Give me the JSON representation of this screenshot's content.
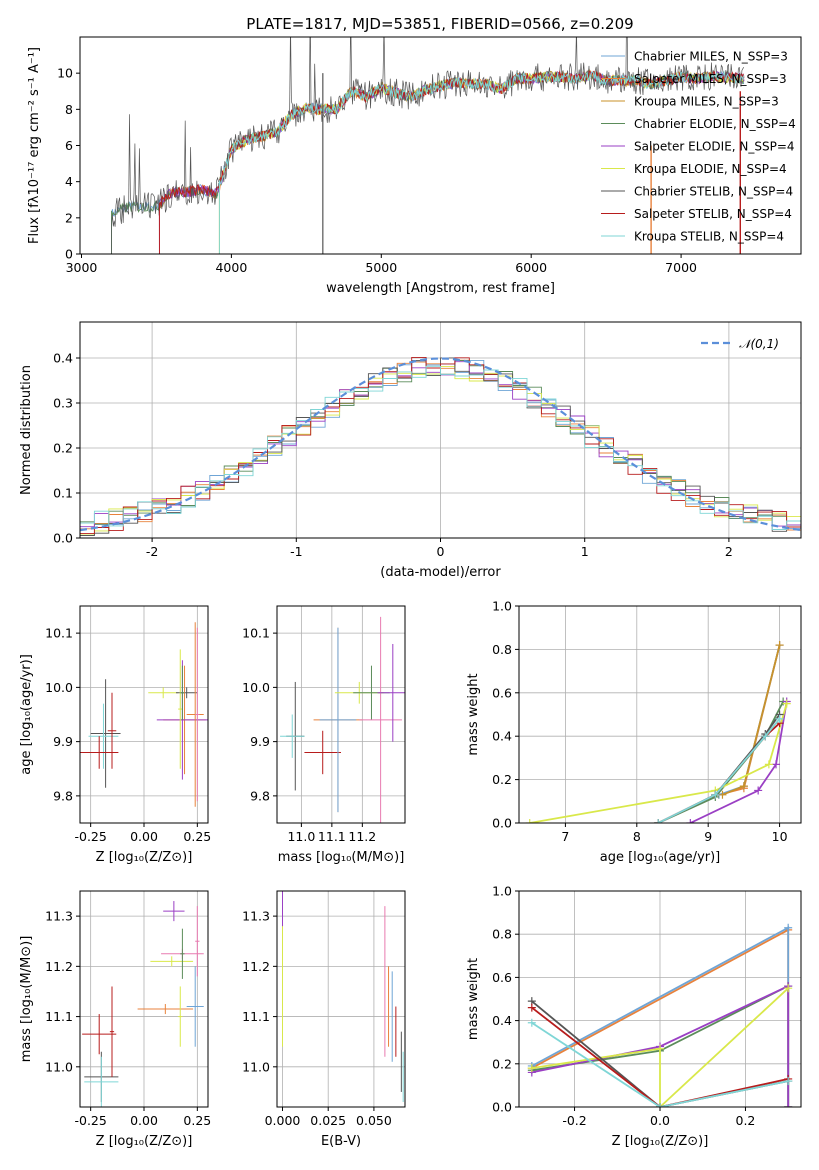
{
  "figure": {
    "title": "PLATE=1817, MJD=53851, FIBERID=0566, z=0.209"
  },
  "chart_data": [
    {
      "id": "spectrum",
      "type": "line",
      "xlabel": "wavelength [Angstrom, rest frame]",
      "ylabel": "Flux [fλ10⁻¹⁷ erg cm⁻² s⁻¹ A⁻¹]",
      "xlim": [
        2990,
        7800
      ],
      "ylim": [
        0,
        12
      ],
      "xticks": [
        3000,
        4000,
        5000,
        6000,
        7000
      ],
      "yticks": [
        0,
        2,
        4,
        6,
        8,
        10
      ],
      "grid": false,
      "legend_position": "top-right",
      "series": [
        {
          "name": "Chabrier MILES, N_SSP=3",
          "color": "#6fa5d6"
        },
        {
          "name": "Salpeter MILES, N_SSP=3",
          "color": "#e8823c"
        },
        {
          "name": "Kroupa MILES, N_SSP=3",
          "color": "#c8922a"
        },
        {
          "name": "Chabrier ELODIE, N_SSP=4",
          "color": "#5b8c5a"
        },
        {
          "name": "Salpeter ELODIE, N_SSP=4",
          "color": "#9a3fc4"
        },
        {
          "name": "Kroupa ELODIE, N_SSP=4",
          "color": "#d9e84a"
        },
        {
          "name": "Chabrier STELIB, N_SSP=4",
          "color": "#555555"
        },
        {
          "name": "Salpeter STELIB, N_SSP=4",
          "color": "#b71c1c"
        },
        {
          "name": "Kroupa STELIB, N_SSP=4",
          "color": "#7fd6d6"
        }
      ],
      "data_envelope": {
        "x": [
          3200,
          3300,
          3400,
          3500,
          3600,
          3700,
          3800,
          3900,
          4000,
          4100,
          4200,
          4300,
          4400,
          4500,
          4600,
          4700,
          4800,
          4900,
          5000,
          5100,
          5200,
          5300,
          5400,
          5500,
          5600,
          5700,
          5800,
          5900,
          6000,
          6100,
          6200,
          6300,
          6400,
          6500,
          6600,
          6700,
          6800,
          6900,
          7000,
          7100,
          7200,
          7300,
          7400
        ],
        "y": [
          2.2,
          2.6,
          2.6,
          2.6,
          3.4,
          3.4,
          3.6,
          3.3,
          5.8,
          6.3,
          6.5,
          6.7,
          7.7,
          8.1,
          8.0,
          8.0,
          9.0,
          8.7,
          9.2,
          8.9,
          8.7,
          9.1,
          9.3,
          9.5,
          9.4,
          9.4,
          9.1,
          9.7,
          9.7,
          9.8,
          9.8,
          9.7,
          9.9,
          9.6,
          9.6,
          9.6,
          9.4,
          9.6,
          9.8,
          9.7,
          9.8,
          9.8,
          9.7
        ]
      }
    },
    {
      "id": "residuals",
      "type": "line",
      "xlabel": "(data-model)/error",
      "ylabel": "Normed distribution",
      "xlim": [
        -2.5,
        2.5
      ],
      "ylim": [
        0,
        0.48
      ],
      "xticks": [
        -2,
        -1,
        0,
        1,
        2
      ],
      "yticks": [
        0.0,
        0.1,
        0.2,
        0.3,
        0.4
      ],
      "grid": true,
      "legend_position": "top-right",
      "gaussian_label": "𝒩(0,1)",
      "gaussian_color": "#5b8fd9"
    },
    {
      "id": "age-vs-Z",
      "type": "scatter",
      "xlabel": "Z [log₁₀(Z/Z⊙)]",
      "ylabel": "age  [log₁₀(age/yr)]",
      "xlim": [
        -0.3,
        0.3
      ],
      "ylim": [
        9.75,
        10.15
      ],
      "xticks": [
        -0.25,
        0.0,
        0.25
      ],
      "yticks": [
        9.8,
        9.9,
        10.0,
        10.1
      ],
      "grid": true,
      "points": [
        {
          "x": -0.18,
          "y": 9.915,
          "xerr": 0.07,
          "yerr": 0.1,
          "color": "#555555"
        },
        {
          "x": -0.19,
          "y": 9.91,
          "xerr": 0.07,
          "yerr": 0.06,
          "color": "#7fd6d6"
        },
        {
          "x": -0.21,
          "y": 9.88,
          "xerr": 0.09,
          "yerr": 0.03,
          "color": "#b71c1c"
        },
        {
          "x": -0.15,
          "y": 9.92,
          "xerr": 0.02,
          "yerr": 0.07,
          "color": "#b71c1c"
        },
        {
          "x": 0.09,
          "y": 9.99,
          "xerr": 0.07,
          "yerr": 0.01,
          "color": "#d9e84a"
        },
        {
          "x": 0.2,
          "y": 9.99,
          "xerr": 0.05,
          "yerr": 0.01,
          "color": "#555555"
        },
        {
          "x": 0.19,
          "y": 9.94,
          "xerr": 0.1,
          "yerr": 0.1,
          "color": "#e8823c"
        },
        {
          "x": 0.18,
          "y": 9.94,
          "xerr": 0.12,
          "yerr": 0.11,
          "color": "#9a3fc4"
        },
        {
          "x": 0.24,
          "y": 9.95,
          "xerr": 0.04,
          "yerr": 0.17,
          "color": "#e8823c"
        },
        {
          "x": 0.25,
          "y": 9.95,
          "xerr": 0.01,
          "yerr": 0.16,
          "color": "#e87ab0"
        },
        {
          "x": 0.17,
          "y": 9.96,
          "xerr": 0.01,
          "yerr": 0.11,
          "color": "#d9e84a"
        },
        {
          "x": 0.18,
          "y": 9.99,
          "xerr": 0.01,
          "yerr": 0.05,
          "color": "#5b8c5a"
        }
      ]
    },
    {
      "id": "age-vs-mass",
      "type": "scatter",
      "xlabel": "mass [log₁₀(M/M⊙)]",
      "ylabel": "",
      "xlim": [
        10.92,
        11.34
      ],
      "ylim": [
        9.75,
        10.15
      ],
      "xticks": [
        11.0,
        11.1,
        11.2
      ],
      "yticks": [
        9.8,
        9.9,
        10.0,
        10.1
      ],
      "grid": true,
      "points": [
        {
          "x": 10.98,
          "y": 9.91,
          "xerr": 0.03,
          "yerr": 0.1,
          "color": "#555555"
        },
        {
          "x": 10.97,
          "y": 9.91,
          "xerr": 0.04,
          "yerr": 0.04,
          "color": "#7fd6d6"
        },
        {
          "x": 11.07,
          "y": 9.88,
          "xerr": 0.06,
          "yerr": 0.04,
          "color": "#b71c1c"
        },
        {
          "x": 11.12,
          "y": 9.94,
          "xerr": 0.08,
          "yerr": 0.17,
          "color": "#e8823c"
        },
        {
          "x": 11.12,
          "y": 9.94,
          "xerr": 0.06,
          "yerr": 0.17,
          "color": "#6fa5d6"
        },
        {
          "x": 11.19,
          "y": 9.99,
          "xerr": 0.08,
          "yerr": 0.02,
          "color": "#d9e84a"
        },
        {
          "x": 11.23,
          "y": 9.99,
          "xerr": 0.06,
          "yerr": 0.05,
          "color": "#5b8c5a"
        },
        {
          "x": 11.26,
          "y": 9.94,
          "xerr": 0.07,
          "yerr": 0.19,
          "color": "#e87ab0"
        },
        {
          "x": 11.3,
          "y": 9.99,
          "xerr": 0.05,
          "yerr": 0.09,
          "color": "#9a3fc4"
        }
      ]
    },
    {
      "id": "mass-weight-vs-age",
      "type": "line",
      "xlabel": "age  [log₁₀(age/yr)]",
      "ylabel": "mass weight",
      "xlim": [
        6.35,
        10.3
      ],
      "ylim": [
        0,
        1.0
      ],
      "xticks": [
        7,
        8,
        9,
        10
      ],
      "yticks": [
        0.0,
        0.2,
        0.4,
        0.6,
        0.8,
        1.0
      ],
      "grid": true,
      "series": [
        {
          "color": "#e8823c",
          "x": [
            9.15,
            9.5,
            10.0
          ],
          "y": [
            0.13,
            0.16,
            0.82
          ]
        },
        {
          "color": "#6fa5d6",
          "x": [
            9.15,
            9.5,
            10.0
          ],
          "y": [
            0.13,
            0.17,
            0.82
          ]
        },
        {
          "color": "#c8922a",
          "x": [
            9.2,
            9.5,
            10.0
          ],
          "y": [
            0.13,
            0.17,
            0.82
          ]
        },
        {
          "color": "#5b8c5a",
          "x": [
            8.3,
            9.1,
            9.8,
            10.05
          ],
          "y": [
            0.0,
            0.12,
            0.4,
            0.56
          ]
        },
        {
          "color": "#9a3fc4",
          "x": [
            8.75,
            9.7,
            9.95,
            10.1
          ],
          "y": [
            0.0,
            0.15,
            0.27,
            0.56
          ]
        },
        {
          "color": "#d9e84a",
          "x": [
            6.5,
            9.1,
            9.85,
            10.1
          ],
          "y": [
            0.0,
            0.15,
            0.27,
            0.55
          ]
        },
        {
          "color": "#555555",
          "x": [
            8.3,
            9.1,
            9.8,
            10.0
          ],
          "y": [
            0.0,
            0.13,
            0.41,
            0.5
          ]
        },
        {
          "color": "#b71c1c",
          "x": [
            8.3,
            9.1,
            9.8,
            10.0
          ],
          "y": [
            0.0,
            0.13,
            0.4,
            0.46
          ]
        },
        {
          "color": "#7fd6d6",
          "x": [
            8.3,
            9.1,
            9.8,
            10.0
          ],
          "y": [
            0.0,
            0.13,
            0.4,
            0.48
          ]
        }
      ]
    },
    {
      "id": "mass-vs-Z",
      "type": "scatter",
      "xlabel": "Z [log₁₀(Z/Z⊙)]",
      "ylabel": "mass [log₁₀(M/M⊙)]",
      "xlim": [
        -0.3,
        0.3
      ],
      "ylim": [
        10.92,
        11.35
      ],
      "xticks": [
        -0.25,
        0.0,
        0.25
      ],
      "yticks": [
        11.0,
        11.1,
        11.2,
        11.3
      ],
      "grid": true,
      "points": [
        {
          "x": -0.2,
          "y": 10.98,
          "xerr": 0.08,
          "yerr": 0.05,
          "color": "#555555"
        },
        {
          "x": -0.2,
          "y": 10.97,
          "xerr": 0.08,
          "yerr": 0.05,
          "color": "#7fd6d6"
        },
        {
          "x": -0.21,
          "y": 11.065,
          "xerr": 0.08,
          "yerr": 0.04,
          "color": "#b71c1c"
        },
        {
          "x": -0.15,
          "y": 11.07,
          "xerr": 0.01,
          "yerr": 0.09,
          "color": "#b71c1c"
        },
        {
          "x": 0.1,
          "y": 11.115,
          "xerr": 0.13,
          "yerr": 0.01,
          "color": "#e8823c"
        },
        {
          "x": 0.24,
          "y": 11.12,
          "xerr": 0.04,
          "yerr": 0.08,
          "color": "#6fa5d6"
        },
        {
          "x": 0.13,
          "y": 11.21,
          "xerr": 0.1,
          "yerr": 0.01,
          "color": "#d9e84a"
        },
        {
          "x": 0.18,
          "y": 11.225,
          "xerr": 0.1,
          "yerr": 0.01,
          "color": "#e87ab0"
        },
        {
          "x": 0.18,
          "y": 11.225,
          "xerr": 0.01,
          "yerr": 0.05,
          "color": "#5b8c5a"
        },
        {
          "x": 0.14,
          "y": 11.31,
          "xerr": 0.05,
          "yerr": 0.02,
          "color": "#9a3fc4"
        },
        {
          "x": 0.25,
          "y": 11.25,
          "xerr": 0.01,
          "yerr": 0.07,
          "color": "#e87ab0"
        },
        {
          "x": 0.17,
          "y": 11.1,
          "xerr": 0.01,
          "yerr": 0.06,
          "color": "#d9e84a"
        }
      ]
    },
    {
      "id": "mass-vs-EBV",
      "type": "scatter",
      "xlabel": "E(B-V)",
      "ylabel": "",
      "xlim": [
        -0.003,
        0.067
      ],
      "ylim": [
        10.92,
        11.35
      ],
      "xticks": [
        0.0,
        0.025,
        0.05
      ],
      "xticklabels": [
        "0.000",
        "0.025",
        "0.050"
      ],
      "yticks": [
        11.0,
        11.1,
        11.2,
        11.3
      ],
      "grid": true,
      "points": [
        {
          "x": 0.0,
          "y": 11.31,
          "xerr": 0.0,
          "yerr": 0.04,
          "color": "#9a3fc4"
        },
        {
          "x": 0.0,
          "y": 11.16,
          "xerr": 0.0,
          "yerr": 0.12,
          "color": "#d9e84a"
        },
        {
          "x": 0.056,
          "y": 11.17,
          "xerr": 0.0,
          "yerr": 0.15,
          "color": "#e87ab0"
        },
        {
          "x": 0.058,
          "y": 11.12,
          "xerr": 0.0,
          "yerr": 0.08,
          "color": "#e8823c"
        },
        {
          "x": 0.06,
          "y": 11.1,
          "xerr": 0.0,
          "yerr": 0.09,
          "color": "#6fa5d6"
        },
        {
          "x": 0.062,
          "y": 11.07,
          "xerr": 0.0,
          "yerr": 0.05,
          "color": "#b71c1c"
        },
        {
          "x": 0.065,
          "y": 11.01,
          "xerr": 0.0,
          "yerr": 0.06,
          "color": "#555555"
        },
        {
          "x": 0.066,
          "y": 10.98,
          "xerr": 0.0,
          "yerr": 0.05,
          "color": "#7fd6d6"
        }
      ]
    },
    {
      "id": "mass-weight-vs-Z",
      "type": "line",
      "xlabel": "Z [log₁₀(Z/Z⊙)]",
      "ylabel": "mass weight",
      "xlim": [
        -0.33,
        0.33
      ],
      "ylim": [
        0,
        1.0
      ],
      "xticks": [
        -0.2,
        0.0,
        0.2
      ],
      "yticks": [
        0.0,
        0.2,
        0.4,
        0.6,
        0.8,
        1.0
      ],
      "grid": true,
      "series": [
        {
          "color": "#e8823c",
          "x": [
            -0.3,
            0.3,
            0.3
          ],
          "y": [
            0.18,
            0.82,
            0.0
          ]
        },
        {
          "color": "#6fa5d6",
          "x": [
            -0.3,
            0.3,
            0.3
          ],
          "y": [
            0.19,
            0.83,
            0.0
          ]
        },
        {
          "color": "#5b8c5a",
          "x": [
            -0.3,
            0.0,
            0.3,
            0.3
          ],
          "y": [
            0.17,
            0.26,
            0.56,
            0.0
          ]
        },
        {
          "color": "#9a3fc4",
          "x": [
            -0.3,
            0.0,
            0.3,
            0.3
          ],
          "y": [
            0.16,
            0.28,
            0.56,
            0.0
          ]
        },
        {
          "color": "#d9e84a",
          "x": [
            -0.3,
            0.0,
            0.0,
            0.3
          ],
          "y": [
            0.18,
            0.27,
            0.0,
            0.55
          ]
        },
        {
          "color": "#555555",
          "x": [
            -0.3,
            0.0,
            0.3
          ],
          "y": [
            0.49,
            0.0,
            0.12
          ]
        },
        {
          "color": "#b71c1c",
          "x": [
            -0.3,
            0.0,
            0.3
          ],
          "y": [
            0.46,
            0.0,
            0.13
          ]
        },
        {
          "color": "#7fd6d6",
          "x": [
            -0.3,
            0.0,
            0.3
          ],
          "y": [
            0.39,
            0.0,
            0.12
          ]
        }
      ]
    }
  ]
}
